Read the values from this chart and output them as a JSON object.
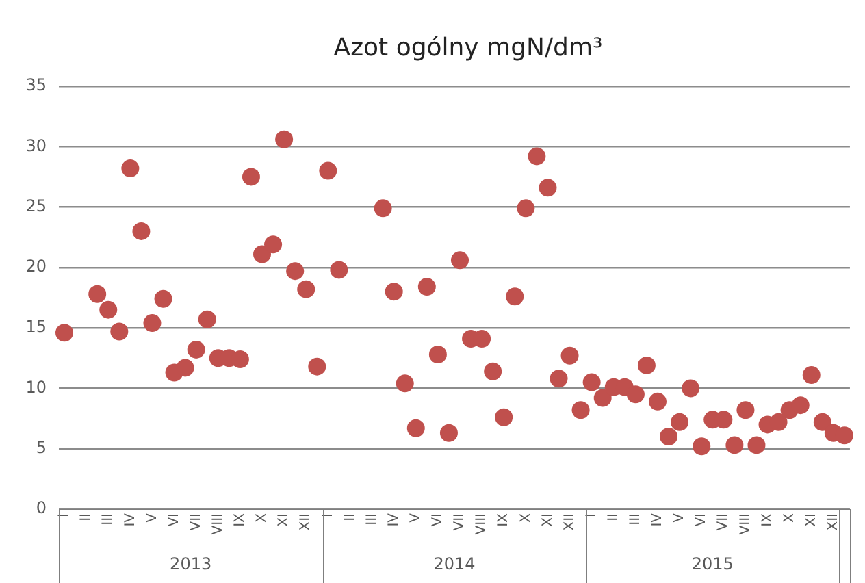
{
  "chart_data": {
    "type": "scatter",
    "title": "Azot ogólny mgN/dm³",
    "categories": [
      "I",
      null,
      "II",
      null,
      "III",
      null,
      "IV",
      null,
      "V",
      null,
      "VI",
      null,
      "VII",
      null,
      "VIII",
      null,
      "IX",
      null,
      "X",
      null,
      "XI",
      null,
      "XII",
      null,
      "I",
      null,
      "II",
      null,
      "III",
      null,
      "IV",
      null,
      "V",
      null,
      "VI",
      null,
      "VII",
      null,
      "VIII",
      null,
      "IX",
      null,
      "X",
      null,
      "XI",
      null,
      "XII",
      null,
      "I",
      null,
      "II",
      null,
      "III",
      null,
      "IV",
      null,
      "V",
      null,
      "VI",
      null,
      "VII",
      null,
      "VIII",
      null,
      "IX",
      null,
      "X",
      null,
      "XI",
      null,
      "XII",
      null
    ],
    "series": [
      {
        "color": "#c0504d",
        "values": [
          14.6,
          null,
          null,
          17.8,
          16.5,
          14.7,
          28.2,
          23.0,
          15.4,
          17.4,
          11.3,
          11.7,
          13.2,
          15.7,
          12.5,
          12.5,
          12.4,
          27.5,
          21.1,
          21.9,
          30.6,
          19.7,
          18.2,
          11.8,
          28.0,
          19.8,
          null,
          null,
          null,
          24.9,
          18.0,
          10.4,
          6.7,
          18.4,
          12.8,
          6.3,
          20.6,
          14.1,
          14.1,
          11.4,
          7.6,
          17.6,
          24.9,
          29.2,
          26.6,
          10.8,
          12.7,
          8.2,
          10.5,
          9.2,
          10.1,
          10.1,
          9.5,
          11.9,
          8.9,
          6.0,
          7.2,
          10.0,
          5.2,
          7.4,
          7.4,
          5.3,
          8.2,
          5.3,
          7.0,
          7.2,
          8.2,
          8.6,
          11.1,
          7.2,
          6.3,
          6.1
        ]
      }
    ],
    "ylim": [
      0,
      35
    ],
    "yticks": [
      0,
      5,
      10,
      15,
      20,
      25,
      30,
      35
    ],
    "grid": "y",
    "marker": "circle",
    "legend": false,
    "annotations": [
      "2013",
      "2014",
      "2015"
    ]
  }
}
